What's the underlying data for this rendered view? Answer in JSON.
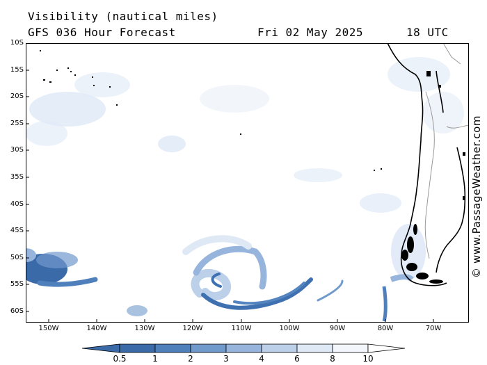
{
  "title": {
    "line1": "Visibility (nautical miles)",
    "line2": "GFS 036 Hour Forecast",
    "date": "Fri 02 May 2025",
    "time": "18 UTC"
  },
  "lat_labels": [
    "10S",
    "15S",
    "20S",
    "25S",
    "30S",
    "35S",
    "40S",
    "45S",
    "50S",
    "55S",
    "60S"
  ],
  "lon_labels": [
    "150W",
    "140W",
    "130W",
    "120W",
    "110W",
    "100W",
    "90W",
    "80W",
    "70W"
  ],
  "credit": "© www.PassageWeather.com",
  "legend": {
    "labels": [
      "0.5",
      "1",
      "2",
      "3",
      "4",
      "6",
      "8",
      "10"
    ],
    "colors": [
      "#3a6aa8",
      "#4f80bc",
      "#7099cc",
      "#97b5dc",
      "#bcd0ea",
      "#dfe9f6",
      "#f3f7fc"
    ]
  }
}
